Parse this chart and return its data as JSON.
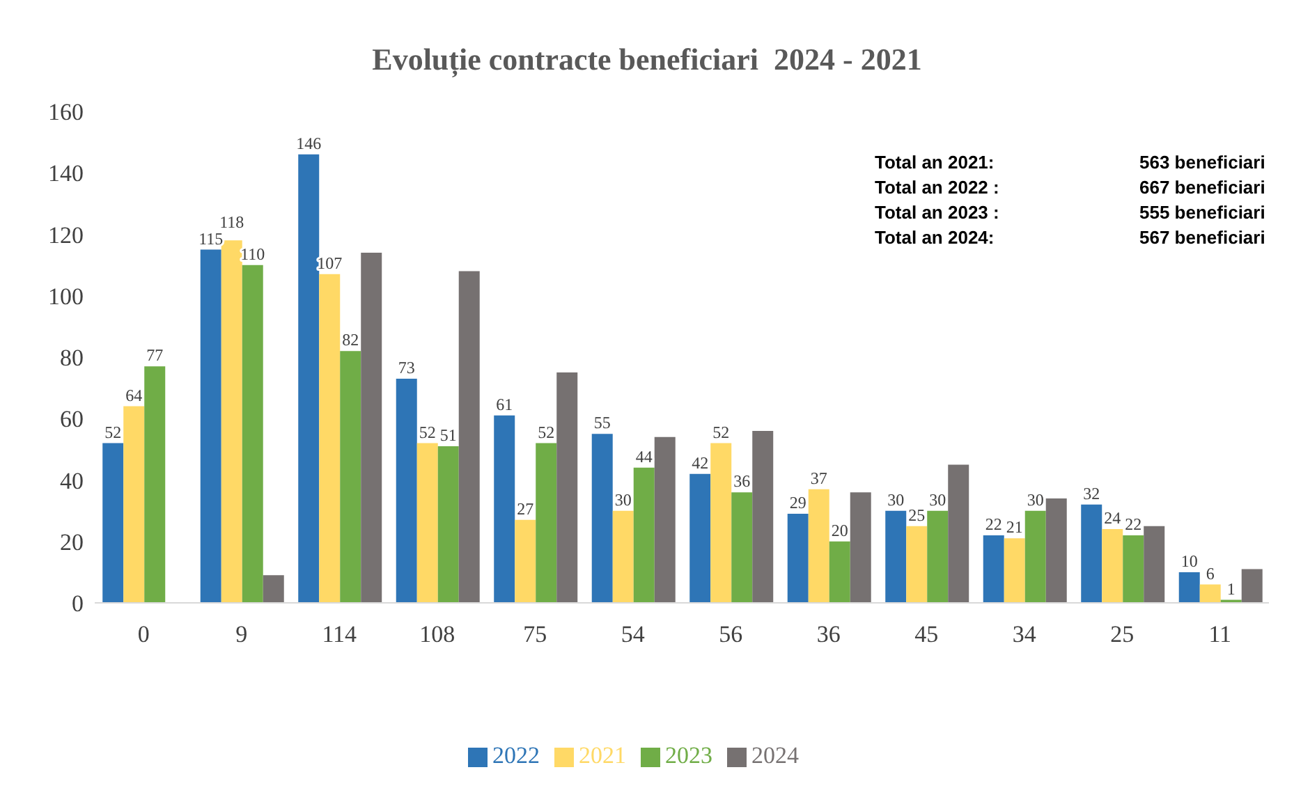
{
  "chart_data": {
    "type": "bar",
    "title": "Evoluție contracte beneficiari  2024 - 2021",
    "categories": [
      "0",
      "9",
      "114",
      "108",
      "75",
      "54",
      "56",
      "36",
      "45",
      "34",
      "25",
      "11"
    ],
    "series": [
      {
        "name": "2022",
        "color": "#2e75b6",
        "values": [
          52,
          115,
          146,
          73,
          61,
          55,
          42,
          29,
          30,
          22,
          32,
          10
        ],
        "value_labels": [
          "52",
          "115",
          "146",
          "73",
          "61",
          "55",
          "42",
          "29",
          "30",
          "22",
          "32",
          "10"
        ]
      },
      {
        "name": "2021",
        "color": "#ffd966",
        "values": [
          64,
          118,
          107,
          52,
          27,
          30,
          52,
          37,
          25,
          21,
          24,
          6
        ],
        "value_labels": [
          "64",
          "118",
          "107",
          "52",
          "27",
          "30",
          "52",
          "37",
          "25",
          "21",
          "24",
          "6"
        ]
      },
      {
        "name": "2023",
        "color": "#70ad47",
        "values": [
          77,
          110,
          82,
          51,
          52,
          44,
          36,
          20,
          30,
          30,
          22,
          1
        ],
        "value_labels": [
          "77",
          "110",
          "82",
          "51",
          "52",
          "44",
          "36",
          "20",
          "30",
          "30",
          "22",
          "1"
        ]
      },
      {
        "name": "2024",
        "color": "#767171",
        "values": [
          0,
          9,
          114,
          108,
          75,
          54,
          56,
          36,
          45,
          34,
          25,
          11
        ]
      }
    ],
    "ylim": [
      0,
      160
    ],
    "yticks": [
      0,
      20,
      40,
      60,
      80,
      100,
      120,
      140,
      160
    ],
    "grid": false,
    "legend": "bottom",
    "annotations": [
      "Total an 2021:",
      "563 beneficiari",
      "Total an 2022 :",
      "667 beneficiari",
      "Total an 2023 :",
      "555 beneficiari",
      "Total an 2024:",
      "567 beneficiari"
    ]
  }
}
